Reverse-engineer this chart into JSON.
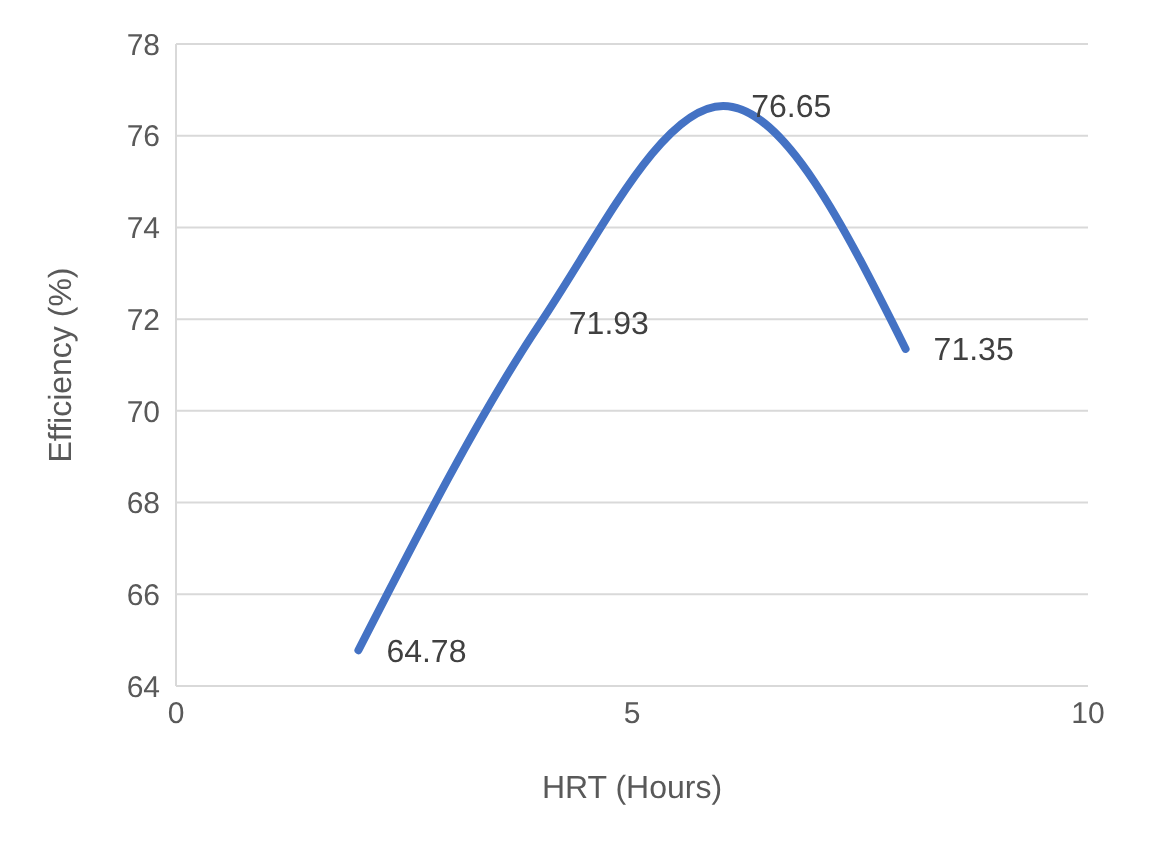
{
  "chart_data": {
    "type": "line",
    "xlabel": "HRT (Hours)",
    "ylabel": "Efficiency (%)",
    "x": [
      2,
      4,
      6,
      8
    ],
    "series": [
      {
        "color": "#4472c4",
        "values": [
          64.78,
          71.93,
          76.65,
          71.35
        ]
      }
    ],
    "xlim": [
      0,
      10
    ],
    "xticks": [
      0,
      5,
      10
    ],
    "ylim": [
      64,
      78
    ],
    "yticks": [
      64,
      66,
      68,
      70,
      72,
      74,
      76,
      78
    ],
    "grid": "y",
    "data_labels": true,
    "marker": "none",
    "line_style": "solid",
    "legend": false
  }
}
